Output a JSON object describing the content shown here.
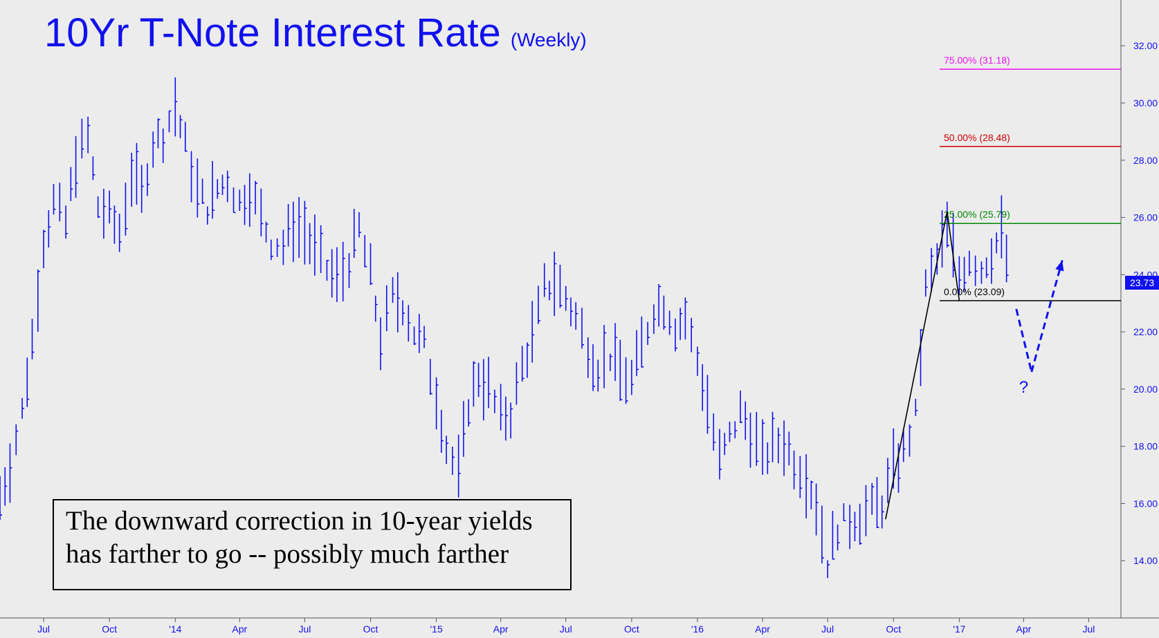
{
  "title": "10Yr T-Note Interest Rate",
  "subtitle": "(Weekly)",
  "note": {
    "line1": "The downward correction in 10-year yields",
    "line2": "has farther to go -- possibly much farther"
  },
  "last_price_label": "23.73",
  "question_mark": "?",
  "colors": {
    "bars": "#1010ee",
    "background": "#ececec",
    "fib_75": "#ee10ee",
    "fib_50": "#cc0000",
    "fib_25": "#008800",
    "fib_0": "#000000",
    "pattern": "#000000",
    "forecast": "#1010ee"
  },
  "chart_data": {
    "type": "ohlc",
    "timeframe": "Weekly",
    "y_range": [
      12.0,
      33.6
    ],
    "y_ticks": [
      "14.00",
      "16.00",
      "18.00",
      "20.00",
      "22.00",
      "24.00",
      "26.00",
      "28.00",
      "30.00",
      "32.00"
    ],
    "x_ticks": [
      "Jul",
      "Oct",
      "'14",
      "Apr",
      "Jul",
      "Oct",
      "'15",
      "Apr",
      "Jul",
      "Oct",
      "'16",
      "Apr",
      "Jul",
      "Oct",
      "'17",
      "Apr",
      "Jul"
    ],
    "x_tick_dates": [
      "2013-07-01",
      "2013-10-01",
      "2014-01-01",
      "2014-04-01",
      "2014-07-01",
      "2014-10-01",
      "2015-01-01",
      "2015-04-01",
      "2015-07-01",
      "2015-10-01",
      "2016-01-01",
      "2016-04-01",
      "2016-07-01",
      "2016-10-01",
      "2017-01-01",
      "2017-04-01",
      "2017-07-01"
    ],
    "series": [
      {
        "values": [
          [
            "2013-05-01",
            16.2
          ],
          [
            "2013-05-15",
            17.4
          ],
          [
            "2013-06-01",
            19.2
          ],
          [
            "2013-06-15",
            21.7
          ],
          [
            "2013-07-01",
            25.2
          ],
          [
            "2013-07-15",
            26.5
          ],
          [
            "2013-08-01",
            25.8
          ],
          [
            "2013-08-15",
            28.1
          ],
          [
            "2013-09-01",
            28.8
          ],
          [
            "2013-09-15",
            26.4
          ],
          [
            "2013-10-01",
            26.0
          ],
          [
            "2013-10-15",
            25.5
          ],
          [
            "2013-11-01",
            27.5
          ],
          [
            "2013-11-15",
            26.8
          ],
          [
            "2013-12-01",
            28.6
          ],
          [
            "2013-12-15",
            28.9
          ],
          [
            "2014-01-01",
            29.9
          ],
          [
            "2014-01-15",
            28.5
          ],
          [
            "2014-02-01",
            26.9
          ],
          [
            "2014-02-15",
            26.4
          ],
          [
            "2014-03-01",
            27.0
          ],
          [
            "2014-03-15",
            27.3
          ],
          [
            "2014-04-01",
            26.5
          ],
          [
            "2014-04-15",
            27.0
          ],
          [
            "2014-05-01",
            26.0
          ],
          [
            "2014-05-15",
            25.2
          ],
          [
            "2014-06-01",
            25.0
          ],
          [
            "2014-06-15",
            25.8
          ],
          [
            "2014-07-01",
            25.5
          ],
          [
            "2014-07-15",
            24.8
          ],
          [
            "2014-08-01",
            24.2
          ],
          [
            "2014-08-15",
            23.8
          ],
          [
            "2014-09-01",
            24.5
          ],
          [
            "2014-09-15",
            25.6
          ],
          [
            "2014-10-01",
            24.0
          ],
          [
            "2014-10-15",
            21.8
          ],
          [
            "2014-11-01",
            23.2
          ],
          [
            "2014-11-15",
            23.0
          ],
          [
            "2014-12-01",
            22.0
          ],
          [
            "2014-12-15",
            21.5
          ],
          [
            "2015-01-01",
            19.8
          ],
          [
            "2015-01-15",
            18.0
          ],
          [
            "2015-02-01",
            17.0
          ],
          [
            "2015-02-15",
            19.5
          ],
          [
            "2015-03-01",
            20.5
          ],
          [
            "2015-03-15",
            20.0
          ],
          [
            "2015-04-01",
            19.0
          ],
          [
            "2015-04-15",
            19.2
          ],
          [
            "2015-05-01",
            20.8
          ],
          [
            "2015-05-15",
            21.8
          ],
          [
            "2015-06-01",
            23.5
          ],
          [
            "2015-06-15",
            23.8
          ],
          [
            "2015-07-01",
            23.2
          ],
          [
            "2015-07-15",
            22.5
          ],
          [
            "2015-08-01",
            21.5
          ],
          [
            "2015-08-15",
            20.8
          ],
          [
            "2015-09-01",
            21.2
          ],
          [
            "2015-09-15",
            20.6
          ],
          [
            "2015-10-01",
            20.3
          ],
          [
            "2015-10-15",
            21.5
          ],
          [
            "2015-11-01",
            22.8
          ],
          [
            "2015-11-15",
            23.0
          ],
          [
            "2015-12-01",
            22.2
          ],
          [
            "2015-12-15",
            22.5
          ],
          [
            "2016-01-01",
            21.0
          ],
          [
            "2016-01-15",
            19.5
          ],
          [
            "2016-02-01",
            17.5
          ],
          [
            "2016-02-15",
            18.3
          ],
          [
            "2016-03-01",
            19.2
          ],
          [
            "2016-03-15",
            18.6
          ],
          [
            "2016-04-01",
            17.6
          ],
          [
            "2016-04-15",
            18.0
          ],
          [
            "2016-05-01",
            18.2
          ],
          [
            "2016-05-15",
            17.5
          ],
          [
            "2016-06-01",
            17.0
          ],
          [
            "2016-06-15",
            16.0
          ],
          [
            "2016-07-01",
            14.0
          ],
          [
            "2016-07-15",
            15.2
          ],
          [
            "2016-08-01",
            15.4
          ],
          [
            "2016-08-15",
            15.6
          ],
          [
            "2016-09-01",
            15.8
          ],
          [
            "2016-09-15",
            16.0
          ],
          [
            "2016-10-01",
            17.2
          ],
          [
            "2016-10-15",
            17.8
          ],
          [
            "2016-11-01",
            19.0
          ],
          [
            "2016-11-15",
            23.5
          ],
          [
            "2016-12-01",
            24.5
          ],
          [
            "2016-12-15",
            25.6
          ],
          [
            "2017-01-01",
            24.0
          ],
          [
            "2017-01-15",
            24.6
          ],
          [
            "2017-02-01",
            24.2
          ],
          [
            "2017-02-15",
            24.8
          ],
          [
            "2017-03-01",
            25.4
          ],
          [
            "2017-03-15",
            23.73
          ]
        ]
      }
    ],
    "fibonacci_levels": [
      {
        "label": "75.00% (31.18)",
        "value": 31.18,
        "color": "#ee10ee"
      },
      {
        "label": "50.00% (28.48)",
        "value": 28.48,
        "color": "#cc0000"
      },
      {
        "label": "25.00% (25.79)",
        "value": 25.79,
        "color": "#008800"
      },
      {
        "label": "0.00% (23.09)",
        "value": 23.09,
        "color": "#000000"
      }
    ],
    "abc_pattern": [
      [
        "2016-09-20",
        15.45
      ],
      [
        "2016-12-15",
        26.2
      ],
      [
        "2017-01-01",
        23.09
      ]
    ],
    "forecast_path": [
      [
        "2017-04-12",
        20.6
      ],
      [
        "2017-05-25",
        24.5
      ]
    ],
    "last_price": 23.73
  }
}
